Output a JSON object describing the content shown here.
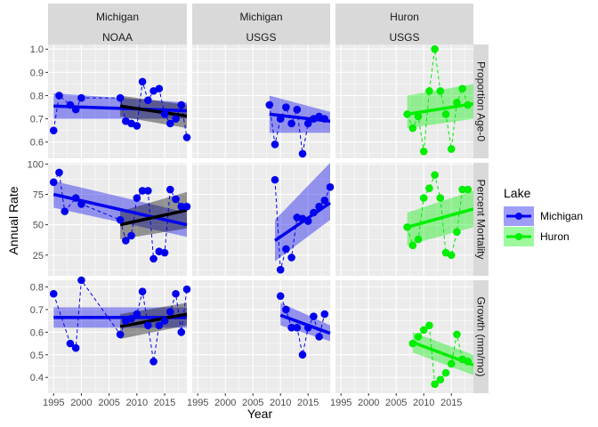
{
  "chart_data": {
    "type": "scatter",
    "title": "",
    "xlabel": "Year",
    "ylabel": "Annual  Rate",
    "xlim": [
      1994,
      2019
    ],
    "x_ticks": [
      1995,
      2000,
      2005,
      2010,
      2015
    ],
    "x_tick_labels": [
      "1995",
      "2000",
      "2005",
      "2010",
      "2015"
    ],
    "grid": true,
    "legend": {
      "title": "Lake",
      "position": "right",
      "entries": [
        {
          "name": "Michigan",
          "color": "#0000ee"
        },
        {
          "name": "Huron",
          "color": "#00ee00"
        }
      ]
    },
    "colors": {
      "Michigan": "#0000ee",
      "Huron": "#00ee00",
      "trend_black": "#000000",
      "panel_bg": "#ebebeb",
      "strip_bg": "#d9d9d9"
    },
    "columns": [
      {
        "lake": "Michigan",
        "agency": "NOAA"
      },
      {
        "lake": "Michigan",
        "agency": "USGS"
      },
      {
        "lake": "Huron",
        "agency": "USGS"
      }
    ],
    "rows": [
      {
        "label": "Proportion Age-0",
        "ylim": [
          0.53,
          1.02
        ],
        "ticks": [
          0.6,
          0.7,
          0.8,
          0.9,
          1.0
        ],
        "tick_labels": [
          "0.6",
          "0.7",
          "0.8",
          "0.9",
          "1.0"
        ]
      },
      {
        "label": "Percent Mortality",
        "ylim": [
          8,
          101
        ],
        "ticks": [
          25,
          50,
          75,
          100
        ],
        "tick_labels": [
          "25",
          "50",
          "75",
          "100"
        ]
      },
      {
        "label": "Growth (mm/mo)",
        "ylim": [
          0.33,
          0.83
        ],
        "ticks": [
          0.4,
          0.5,
          0.6,
          0.7,
          0.8
        ],
        "tick_labels": [
          "0.4",
          "0.5",
          "0.6",
          "0.7",
          "0.8"
        ]
      }
    ],
    "panels": [
      {
        "row": 0,
        "col": 0,
        "series": "Michigan",
        "x": [
          1995,
          1996,
          1998,
          1999,
          2000,
          2007,
          2008,
          2009,
          2010,
          2011,
          2012,
          2013,
          2014,
          2015,
          2016,
          2017,
          2018,
          2019
        ],
        "y": [
          0.65,
          0.8,
          0.76,
          0.74,
          0.79,
          0.79,
          0.69,
          0.68,
          0.67,
          0.86,
          0.78,
          0.82,
          0.83,
          0.72,
          0.68,
          0.7,
          0.76,
          0.62
        ],
        "trend": {
          "x": [
            1995,
            2019
          ],
          "y": [
            0.755,
            0.735
          ],
          "band_lower": [
            0.7,
            0.7
          ],
          "band_upper": [
            0.81,
            0.77
          ]
        },
        "trend_black": {
          "x": [
            2007,
            2019
          ],
          "y": [
            0.755,
            0.712
          ],
          "band_lower": [
            0.71,
            0.66
          ],
          "band_upper": [
            0.8,
            0.76
          ]
        }
      },
      {
        "row": 1,
        "col": 0,
        "series": "Michigan",
        "x": [
          1995,
          1996,
          1997,
          1999,
          2000,
          2007,
          2008,
          2009,
          2010,
          2011,
          2012,
          2013,
          2014,
          2015,
          2016,
          2017,
          2018,
          2019
        ],
        "y": [
          85,
          93,
          61,
          72,
          67,
          54,
          37,
          41,
          72,
          78,
          78,
          22,
          28,
          27,
          79,
          71,
          65,
          65
        ],
        "trend": {
          "x": [
            1995,
            2019
          ],
          "y": [
            75,
            50
          ],
          "band_lower": [
            64,
            40
          ],
          "band_upper": [
            86,
            60
          ]
        },
        "trend_black": {
          "x": [
            2007,
            2019
          ],
          "y": [
            50,
            62
          ],
          "band_lower": [
            38,
            47
          ],
          "band_upper": [
            61,
            77
          ]
        }
      },
      {
        "row": 2,
        "col": 0,
        "series": "Michigan",
        "x": [
          1995,
          1998,
          1999,
          2000,
          2007,
          2008,
          2009,
          2010,
          2011,
          2012,
          2013,
          2014,
          2015,
          2016,
          2017,
          2018,
          2019
        ],
        "y": [
          0.77,
          0.55,
          0.53,
          0.83,
          0.59,
          0.65,
          0.66,
          0.68,
          0.78,
          0.63,
          0.47,
          0.63,
          0.65,
          0.69,
          0.77,
          0.6,
          0.79
        ],
        "trend": {
          "x": [
            1995,
            2019
          ],
          "y": [
            0.665,
            0.665
          ],
          "band_lower": [
            0.62,
            0.62
          ],
          "band_upper": [
            0.71,
            0.71
          ]
        },
        "trend_black": {
          "x": [
            2007,
            2019
          ],
          "y": [
            0.625,
            0.68
          ],
          "band_lower": [
            0.57,
            0.63
          ],
          "band_upper": [
            0.68,
            0.73
          ]
        }
      },
      {
        "row": 0,
        "col": 1,
        "series": "Michigan",
        "x": [
          2008,
          2009,
          2010,
          2011,
          2012,
          2013,
          2014,
          2015,
          2016,
          2017,
          2018
        ],
        "y": [
          0.76,
          0.59,
          0.7,
          0.75,
          0.68,
          0.74,
          0.55,
          0.68,
          0.7,
          0.71,
          0.7
        ],
        "trend": {
          "x": [
            2008,
            2019
          ],
          "y": [
            0.72,
            0.69
          ],
          "band_lower": [
            0.64,
            0.64
          ],
          "band_upper": [
            0.8,
            0.73
          ]
        }
      },
      {
        "row": 1,
        "col": 1,
        "series": "Michigan",
        "x": [
          2009,
          2010,
          2011,
          2012,
          2013,
          2014,
          2015,
          2016,
          2017,
          2018,
          2019
        ],
        "y": [
          87,
          13,
          30,
          23,
          56,
          55,
          53,
          60,
          65,
          70,
          81
        ],
        "trend": {
          "x": [
            2009,
            2019
          ],
          "y": [
            37,
            68
          ],
          "band_lower": [
            20,
            54
          ],
          "band_upper": [
            54,
            101
          ]
        }
      },
      {
        "row": 2,
        "col": 1,
        "series": "Michigan",
        "x": [
          2010,
          2011,
          2012,
          2013,
          2014,
          2015,
          2016,
          2017,
          2018
        ],
        "y": [
          0.76,
          0.7,
          0.62,
          0.62,
          0.5,
          0.62,
          0.67,
          0.58,
          0.68
        ],
        "trend": {
          "x": [
            2010,
            2019
          ],
          "y": [
            0.675,
            0.595
          ],
          "band_lower": [
            0.63,
            0.56
          ],
          "band_upper": [
            0.73,
            0.63
          ]
        }
      },
      {
        "row": 0,
        "col": 2,
        "series": "Huron",
        "x": [
          2007,
          2008,
          2009,
          2010,
          2011,
          2012,
          2013,
          2014,
          2015,
          2016,
          2017,
          2018
        ],
        "y": [
          0.72,
          0.66,
          0.71,
          0.56,
          0.82,
          1.0,
          0.82,
          0.72,
          0.57,
          0.77,
          0.83,
          0.76
        ],
        "trend": {
          "x": [
            2007,
            2019
          ],
          "y": [
            0.72,
            0.765
          ],
          "band_lower": [
            0.66,
            0.7
          ],
          "band_upper": [
            0.8,
            0.85
          ]
        }
      },
      {
        "row": 1,
        "col": 2,
        "series": "Huron",
        "x": [
          2007,
          2008,
          2009,
          2010,
          2011,
          2012,
          2013,
          2014,
          2015,
          2016,
          2017,
          2018
        ],
        "y": [
          48,
          33,
          38,
          72,
          80,
          91,
          72,
          27,
          25,
          44,
          79,
          79
        ],
        "trend": {
          "x": [
            2007,
            2019
          ],
          "y": [
            48,
            63
          ],
          "band_lower": [
            33,
            48
          ],
          "band_upper": [
            60,
            78
          ]
        }
      },
      {
        "row": 2,
        "col": 2,
        "series": "Huron",
        "x": [
          2008,
          2009,
          2010,
          2011,
          2012,
          2013,
          2014,
          2015,
          2016,
          2017,
          2018
        ],
        "y": [
          0.55,
          0.58,
          0.61,
          0.63,
          0.37,
          0.39,
          0.42,
          0.46,
          0.59,
          0.48,
          0.47
        ],
        "trend": {
          "x": [
            2008,
            2019
          ],
          "y": [
            0.555,
            0.455
          ],
          "band_lower": [
            0.51,
            0.41
          ],
          "band_upper": [
            0.6,
            0.5
          ]
        }
      }
    ]
  }
}
